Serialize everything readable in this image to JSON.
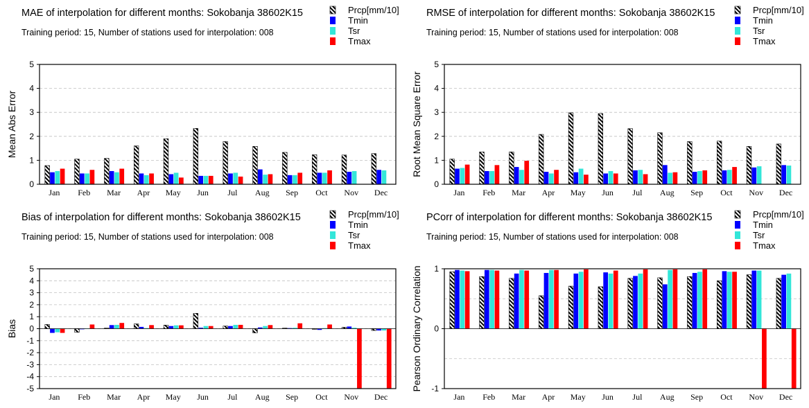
{
  "colors": {
    "Prcp[mm/10]": "hatch-black-white",
    "Tmin": "#0000ff",
    "Tsr": "#33e6d9",
    "Tmax": "#ff0000"
  },
  "chart_data": [
    {
      "type": "bar",
      "title": "MAE of interpolation for different months: Sokobanja  38602K15",
      "subtitle": "Training period: 15, Number of stations used for interpolation: 008",
      "xlabel": "",
      "ylabel": "Mean Abs Error",
      "ylim": [
        0,
        5
      ],
      "yticks": [
        "5",
        "4",
        "3",
        "2",
        "1",
        "0"
      ],
      "ytick_values": [
        5,
        4,
        3,
        2,
        1,
        0
      ],
      "grid": true,
      "legend_position": "top-right",
      "categories": [
        "Jan",
        "Feb",
        "Mar",
        "Apr",
        "May",
        "Jun",
        "Jul",
        "Aug",
        "Sep",
        "Oct",
        "Nov",
        "Dec"
      ],
      "series": [
        {
          "name": "Prcp[mm/10]",
          "values": [
            0.78,
            1.05,
            1.08,
            1.6,
            1.9,
            2.33,
            1.78,
            1.58,
            1.33,
            1.23,
            1.22,
            1.28
          ]
        },
        {
          "name": "Tmin",
          "values": [
            0.5,
            0.45,
            0.55,
            0.45,
            0.42,
            0.35,
            0.45,
            0.62,
            0.38,
            0.48,
            0.52,
            0.6
          ]
        },
        {
          "name": "Tsr",
          "values": [
            0.55,
            0.45,
            0.5,
            0.38,
            0.48,
            0.35,
            0.48,
            0.4,
            0.38,
            0.48,
            0.55,
            0.58
          ]
        },
        {
          "name": "Tmax",
          "values": [
            0.65,
            0.6,
            0.65,
            0.45,
            0.28,
            0.35,
            0.32,
            0.42,
            0.48,
            0.58,
            0.0,
            0.0
          ]
        }
      ]
    },
    {
      "type": "bar",
      "title": "RMSE of interpolation for different months: Sokobanja  38602K15",
      "subtitle": "Training period: 15, Number of stations used for interpolation: 008",
      "xlabel": "",
      "ylabel": "Root Mean Square Error",
      "ylim": [
        0,
        5
      ],
      "yticks": [
        "5",
        "4",
        "3",
        "2",
        "1",
        "0"
      ],
      "ytick_values": [
        5,
        4,
        3,
        2,
        1,
        0
      ],
      "grid": true,
      "legend_position": "top-right",
      "categories": [
        "Jan",
        "Feb",
        "Mar",
        "Apr",
        "May",
        "Jun",
        "Jul",
        "Aug",
        "Sep",
        "Oct",
        "Nov",
        "Dec"
      ],
      "series": [
        {
          "name": "Prcp[mm/10]",
          "values": [
            1.05,
            1.35,
            1.35,
            2.08,
            2.98,
            2.95,
            2.32,
            2.15,
            1.78,
            1.8,
            1.58,
            1.68
          ]
        },
        {
          "name": "Tmin",
          "values": [
            0.65,
            0.55,
            0.72,
            0.52,
            0.5,
            0.45,
            0.58,
            0.8,
            0.52,
            0.58,
            0.7,
            0.8
          ]
        },
        {
          "name": "Tsr",
          "values": [
            0.68,
            0.55,
            0.6,
            0.45,
            0.65,
            0.55,
            0.6,
            0.48,
            0.55,
            0.6,
            0.75,
            0.78
          ]
        },
        {
          "name": "Tmax",
          "values": [
            0.82,
            0.8,
            0.98,
            0.6,
            0.4,
            0.45,
            0.42,
            0.5,
            0.58,
            0.72,
            0.0,
            0.0
          ]
        }
      ]
    },
    {
      "type": "bar",
      "title": "Bias of interpolation for different months: Sokobanja  38602K15",
      "subtitle": "Training period: 15, Number of stations used for interpolation: 008",
      "xlabel": "",
      "ylabel": "Bias",
      "ylim": [
        -5,
        5
      ],
      "yticks": [
        "5",
        "4",
        "3",
        "2",
        "1",
        "0",
        "-1",
        "-2",
        "-3",
        "-4",
        "-5"
      ],
      "ytick_values": [
        5,
        4,
        3,
        2,
        1,
        0,
        -1,
        -2,
        -3,
        -4,
        -5
      ],
      "grid": true,
      "legend_position": "top-right",
      "categories": [
        "Jan",
        "Feb",
        "Mar",
        "Apr",
        "May",
        "Jun",
        "Jul",
        "Aug",
        "Sep",
        "Oct",
        "Nov",
        "Dec"
      ],
      "series": [
        {
          "name": "Prcp[mm/10]",
          "values": [
            0.35,
            -0.3,
            0.05,
            0.4,
            0.3,
            1.28,
            0.22,
            -0.35,
            0.05,
            -0.05,
            0.12,
            -0.15
          ]
        },
        {
          "name": "Tmin",
          "values": [
            -0.35,
            -0.05,
            0.3,
            0.15,
            0.22,
            0.08,
            0.22,
            0.1,
            0.05,
            -0.1,
            0.18,
            -0.15
          ]
        },
        {
          "name": "Tsr",
          "values": [
            -0.3,
            0.02,
            0.32,
            0.05,
            0.28,
            0.22,
            0.32,
            0.22,
            0.08,
            0.05,
            0.08,
            -0.15
          ]
        },
        {
          "name": "Tmax",
          "values": [
            -0.35,
            0.35,
            0.48,
            0.3,
            0.28,
            0.22,
            0.32,
            0.3,
            0.45,
            0.35,
            -5.0,
            -5.0
          ]
        }
      ]
    },
    {
      "type": "bar",
      "title": "PCorr of interpolation for different months: Sokobanja  38602K15",
      "subtitle": "Training period: 15, Number of stations used for interpolation: 008",
      "xlabel": "",
      "ylabel": "Pearson Ordinary Correlation",
      "ylim": [
        -1,
        1
      ],
      "yticks": [
        "1",
        "0",
        "-1"
      ],
      "ytick_values": [
        1,
        0,
        -1
      ],
      "grid_values": [
        0.5,
        -0.5
      ],
      "grid": true,
      "legend_position": "top-right",
      "categories": [
        "Jan",
        "Feb",
        "Mar",
        "Apr",
        "May",
        "Jun",
        "Jul",
        "Aug",
        "Sep",
        "Oct",
        "Nov",
        "Dec"
      ],
      "series": [
        {
          "name": "Prcp[mm/10]",
          "values": [
            0.95,
            0.87,
            0.84,
            0.55,
            0.71,
            0.7,
            0.84,
            0.85,
            0.87,
            0.8,
            0.9,
            0.84
          ]
        },
        {
          "name": "Tmin",
          "values": [
            0.98,
            0.98,
            0.92,
            0.93,
            0.92,
            0.94,
            0.88,
            0.74,
            0.93,
            0.96,
            0.97,
            0.9
          ]
        },
        {
          "name": "Tsr",
          "values": [
            0.97,
            0.98,
            0.98,
            0.98,
            0.95,
            0.92,
            0.92,
            0.98,
            0.95,
            0.95,
            0.97,
            0.92
          ]
        },
        {
          "name": "Tmax",
          "values": [
            0.96,
            0.97,
            0.97,
            0.98,
            0.99,
            0.97,
            0.99,
            0.99,
            0.99,
            0.95,
            -1.0,
            -1.0
          ]
        }
      ]
    }
  ]
}
